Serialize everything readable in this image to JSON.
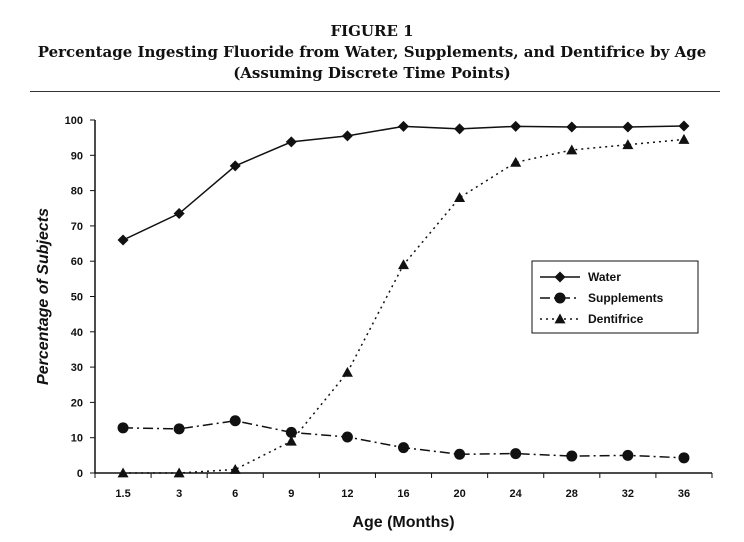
{
  "figure": {
    "label": "FIGURE 1",
    "title": "Percentage Ingesting Fluoride from Water, Supplements, and Dentifrice by Age",
    "subtitle": "(Assuming Discrete Time Points)"
  },
  "chart_data": {
    "type": "line",
    "title": "Percentage Ingesting Fluoride from Water, Supplements, and Dentifrice by Age",
    "subtitle": "(Assuming Discrete Time Points)",
    "xlabel": "Age (Months)",
    "ylabel": "Percentage of Subjects",
    "categories": [
      "1.5",
      "3",
      "6",
      "9",
      "12",
      "16",
      "20",
      "24",
      "28",
      "32",
      "36"
    ],
    "ylim": [
      0,
      100
    ],
    "yticks": [
      0,
      10,
      20,
      30,
      40,
      50,
      60,
      70,
      80,
      90,
      100
    ],
    "grid": false,
    "legend_position": "right",
    "series": [
      {
        "name": "Water",
        "marker": "diamond",
        "line": "solid",
        "values": [
          66,
          73.5,
          87,
          93.8,
          95.5,
          98.2,
          97.5,
          98.2,
          98,
          98,
          98.3
        ]
      },
      {
        "name": "Supplements",
        "marker": "circle",
        "line": "dashdot",
        "values": [
          12.8,
          12.5,
          14.8,
          11.5,
          10.2,
          7.2,
          5.3,
          5.5,
          4.8,
          5,
          4.3
        ]
      },
      {
        "name": "Dentifrice",
        "marker": "triangle",
        "line": "dotted",
        "values": [
          0,
          0,
          1,
          9,
          28.5,
          59,
          78,
          88,
          91.5,
          93,
          94.5
        ]
      }
    ]
  }
}
